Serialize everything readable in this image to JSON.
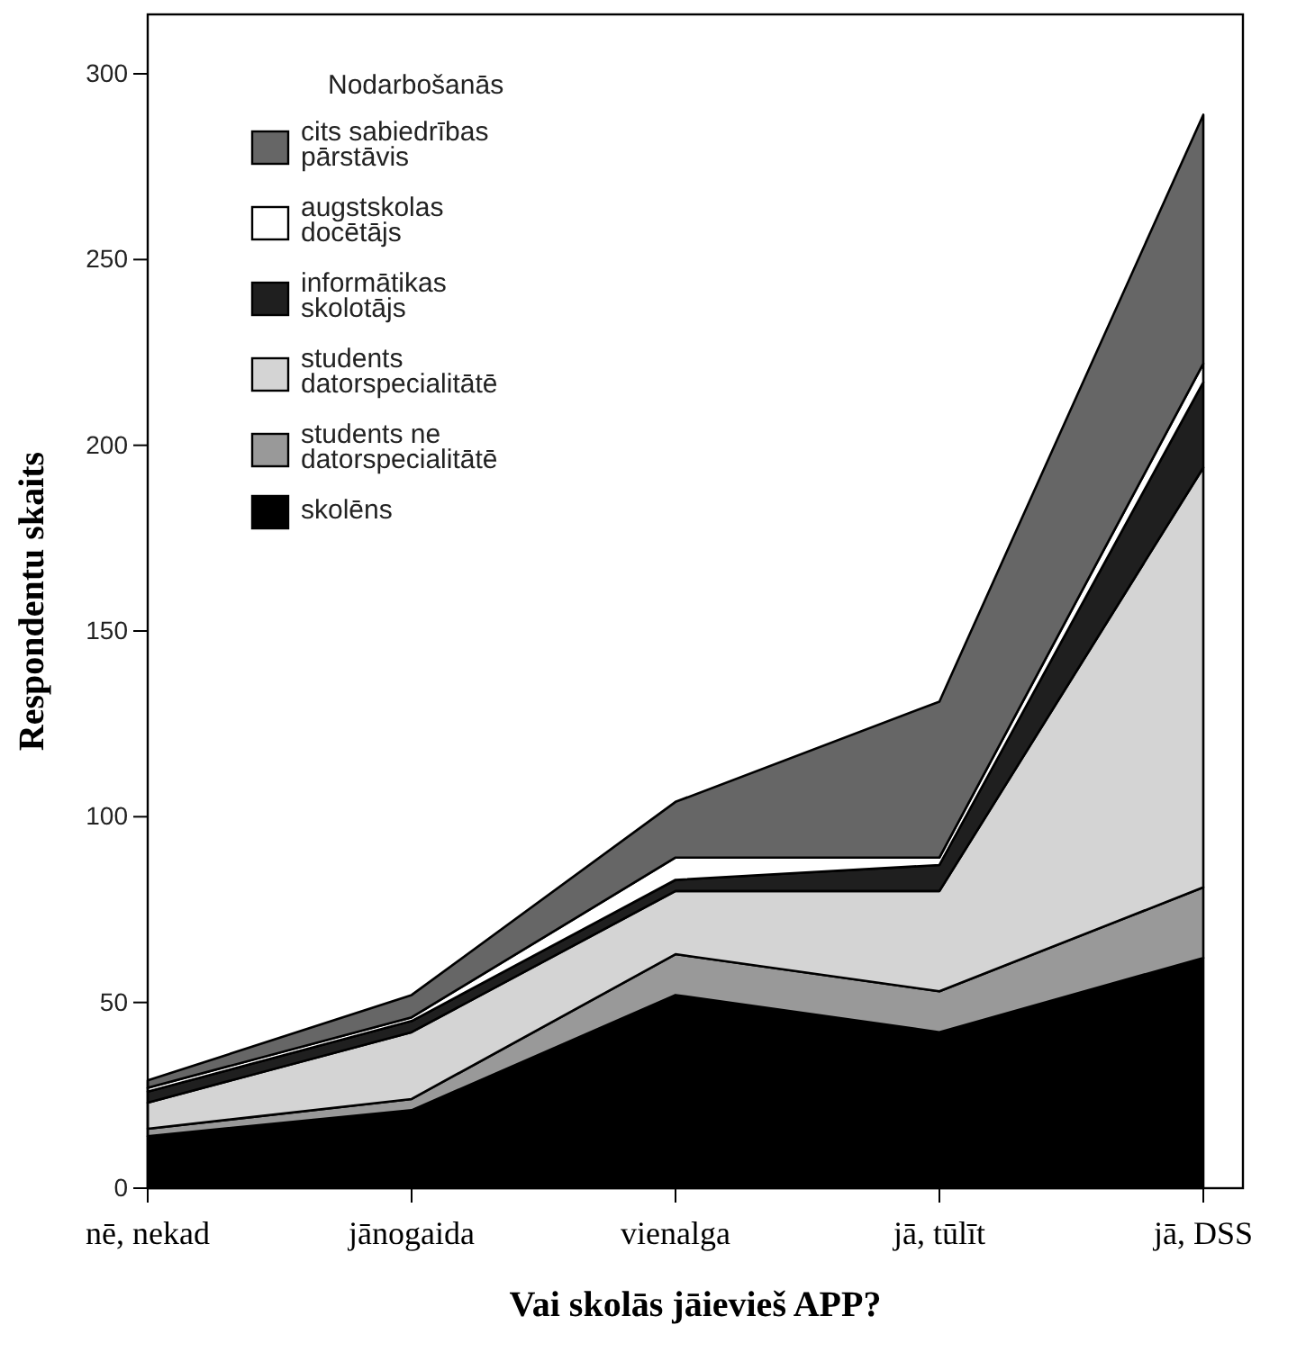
{
  "chart_data": {
    "type": "area",
    "stacked": true,
    "xlabel": "Vai skolās jāievieš APP?",
    "ylabel": "Respondentu skaits",
    "legend_title": "Nodarbošanās",
    "legend": "top left",
    "categories": [
      "nē, nekad",
      "jānogaida",
      "vienalga",
      "jā, tūlīt",
      "jā, DSS"
    ],
    "ylim": [
      0,
      316
    ],
    "yticks": [
      0,
      50,
      100,
      150,
      200,
      250,
      300
    ],
    "series": [
      {
        "name": "skolēns",
        "color": "#000000",
        "values": [
          14,
          21,
          52,
          42,
          62
        ]
      },
      {
        "name": "students ne datorspecialitātē",
        "color": "#999999",
        "values": [
          2,
          3,
          11,
          11,
          19
        ]
      },
      {
        "name": "students datorspecialitātē",
        "color": "#d4d4d4",
        "values": [
          7,
          18,
          17,
          27,
          113
        ]
      },
      {
        "name": "informātikas skolotājs",
        "color": "#1f1f1f",
        "values": [
          3,
          3,
          3,
          7,
          23
        ]
      },
      {
        "name": "augstskolas docētājs",
        "color": "#ffffff",
        "values": [
          1,
          1,
          6,
          2,
          5
        ]
      },
      {
        "name": "cits sabiedrības pārstāvis",
        "color": "#666666",
        "values": [
          2,
          6,
          15,
          42,
          67
        ]
      }
    ]
  }
}
